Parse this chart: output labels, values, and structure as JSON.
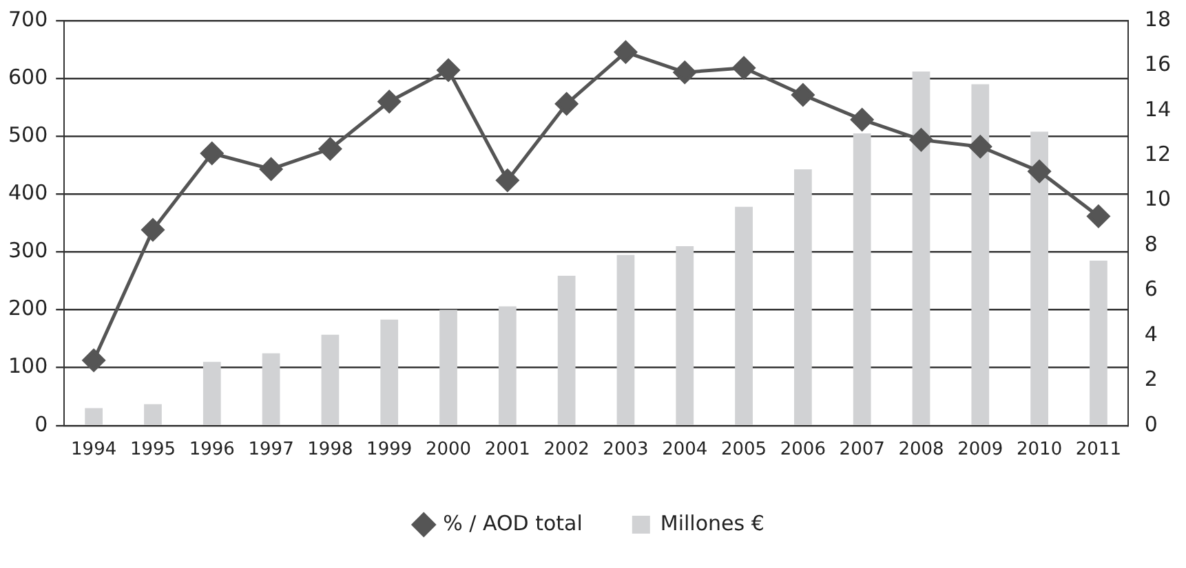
{
  "chart_data": {
    "type": "bar",
    "categories": [
      "1994",
      "1995",
      "1996",
      "1997",
      "1998",
      "1999",
      "2000",
      "2001",
      "2002",
      "2003",
      "2004",
      "2005",
      "2006",
      "2007",
      "2008",
      "2009",
      "2010",
      "2011"
    ],
    "series": [
      {
        "name": "% / AOD total",
        "type": "line",
        "axis": "y2",
        "color": "#555555",
        "marker": "diamond",
        "values": [
          2.9,
          8.7,
          12.1,
          11.4,
          12.3,
          14.4,
          15.8,
          10.9,
          14.3,
          16.6,
          15.7,
          15.9,
          14.7,
          13.6,
          12.7,
          12.4,
          11.3,
          9.3
        ]
      },
      {
        "name": "Millones €",
        "color": "#d1d2d4",
        "values": [
          30,
          37,
          110,
          125,
          157,
          183,
          200,
          206,
          259,
          295,
          310,
          378,
          443,
          505,
          612,
          590,
          508,
          285
        ]
      }
    ],
    "ylim": [
      0,
      700
    ],
    "yticks": [
      0,
      100,
      200,
      300,
      400,
      500,
      600,
      700
    ],
    "y2lim": [
      0,
      18
    ],
    "y2ticks": [
      0,
      2,
      4,
      6,
      8,
      10,
      12,
      14,
      16,
      18
    ],
    "grid": "y",
    "legend": "bottom"
  }
}
